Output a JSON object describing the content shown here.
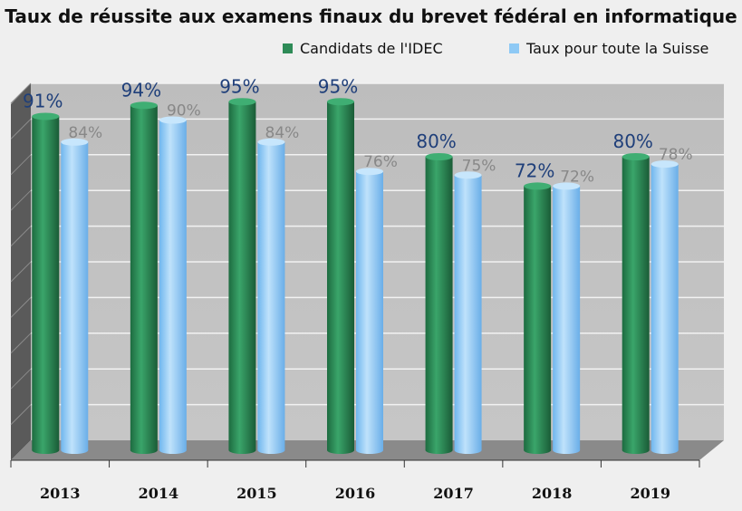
{
  "chart_data": {
    "type": "bar",
    "title": "Taux de réussite aux examens finaux du brevet fédéral en informatique",
    "categories": [
      "2013",
      "2014",
      "2015",
      "2016",
      "2017",
      "2018",
      "2019"
    ],
    "series": [
      {
        "name": "Candidats de l'IDEC",
        "values": [
          91,
          94,
          95,
          95,
          80,
          72,
          80
        ],
        "labels": [
          "91%",
          "94%",
          "95%",
          "95%",
          "80%",
          "72%",
          "80%"
        ],
        "color": "#2e8b57"
      },
      {
        "name": "Taux pour toute la Suisse",
        "values": [
          84,
          90,
          84,
          76,
          75,
          72,
          78
        ],
        "labels": [
          "84%",
          "90%",
          "84%",
          "76%",
          "75%",
          "72%",
          "78%"
        ],
        "color": "#8ec9f5"
      }
    ],
    "ylim": [
      0,
      100
    ],
    "grid": true,
    "legend_position": "top-right",
    "style": "3d-cylinder"
  }
}
